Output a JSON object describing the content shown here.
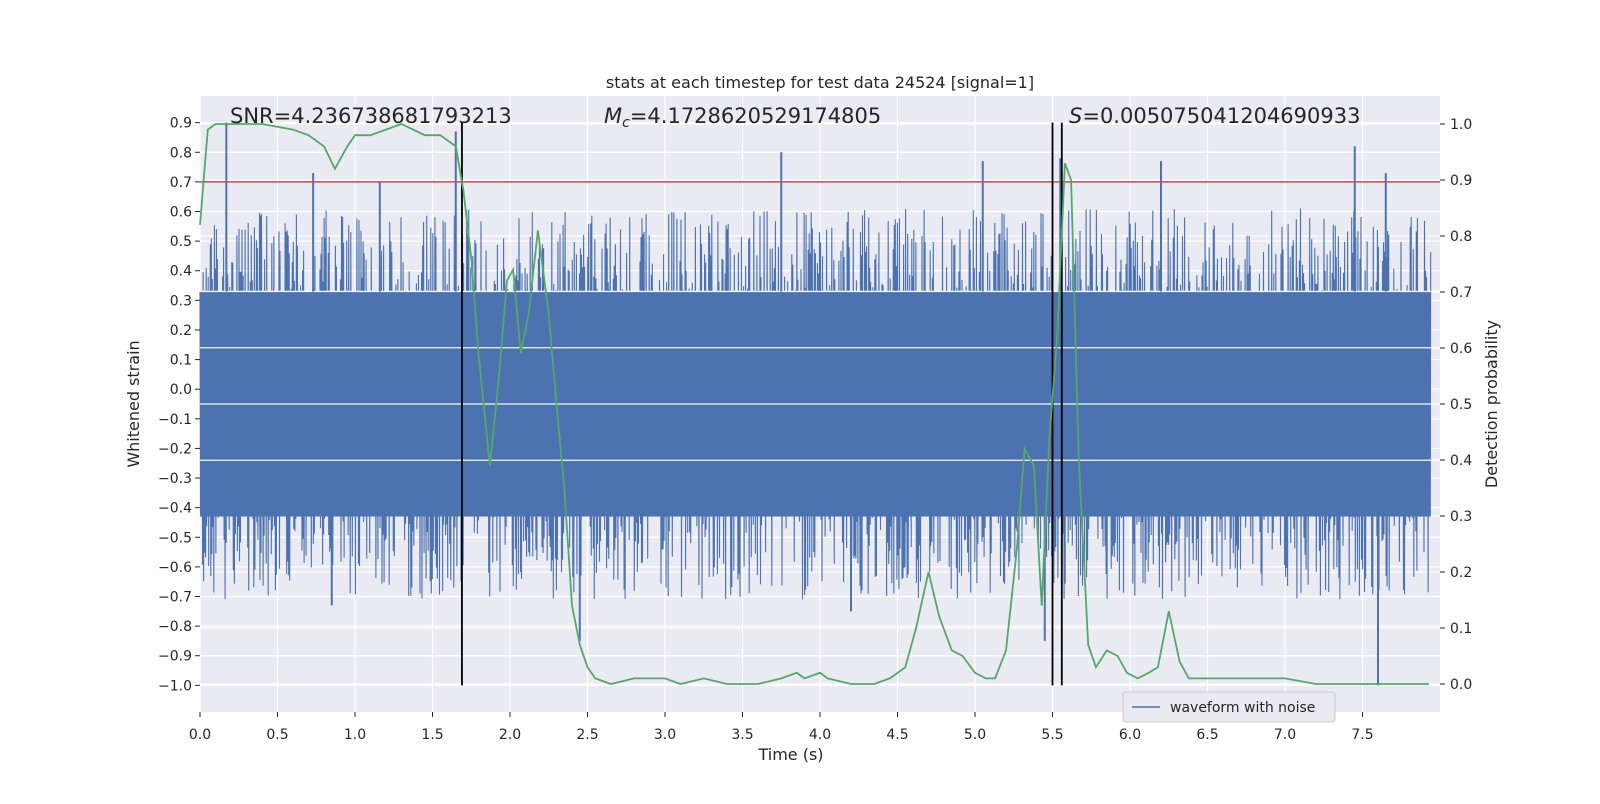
{
  "chart_data": {
    "type": "line",
    "title": "stats at each timestep for test data 24524 [signal=1]",
    "xlabel": "Time (s)",
    "ylabel_left": "Whitened strain",
    "ylabel_right": "Detection probability",
    "xlim": [
      0.0,
      8.0
    ],
    "ylim_left": [
      -1.09,
      0.99
    ],
    "ylim_right": [
      -0.05,
      1.05
    ],
    "x_ticks": [
      "0.0",
      "0.5",
      "1.0",
      "1.5",
      "2.0",
      "2.5",
      "3.0",
      "3.5",
      "4.0",
      "4.5",
      "5.0",
      "5.5",
      "6.0",
      "6.5",
      "7.0",
      "7.5"
    ],
    "y_ticks_left": [
      "0.9",
      "0.8",
      "0.7",
      "0.6",
      "0.5",
      "0.4",
      "0.3",
      "0.2",
      "0.1",
      "0.0",
      "−0.1",
      "−0.2",
      "−0.3",
      "−0.4",
      "−0.5",
      "−0.6",
      "−0.7",
      "−0.8",
      "−0.9",
      "−1.0"
    ],
    "y_ticks_right": [
      "1.0",
      "0.9",
      "0.8",
      "0.7",
      "0.6",
      "0.5",
      "0.4",
      "0.3",
      "0.2",
      "0.1",
      "0.0"
    ],
    "grid": true,
    "annotations": {
      "snr": "SNR=4.236738681793213",
      "mc_symbol": "M",
      "mc_sub": "c",
      "mc_value": "=4.1728620529174805",
      "s_symbol": "S",
      "s_value": "=0.005075041204690933"
    },
    "threshold_line": {
      "value": 0.7,
      "color": "#c44e52"
    },
    "vertical_lines": [
      1.69,
      5.5,
      5.56
    ],
    "legend": {
      "label": "waveform with noise",
      "placement": "lower-right"
    },
    "series": [
      {
        "name": "waveform with noise",
        "axis": "left",
        "color": "#4c72b0",
        "kind": "noisy-waveform",
        "core_band": [
          -0.43,
          0.33
        ],
        "max_value": 0.9,
        "min_value": -1.0,
        "spikes": [
          {
            "x": 0.17,
            "y": 0.9
          },
          {
            "x": 0.73,
            "y": 0.73
          },
          {
            "x": 0.85,
            "y": -0.73
          },
          {
            "x": 1.16,
            "y": 0.7
          },
          {
            "x": 1.65,
            "y": 0.87
          },
          {
            "x": 2.45,
            "y": -0.85
          },
          {
            "x": 3.75,
            "y": 0.8
          },
          {
            "x": 4.2,
            "y": -0.75
          },
          {
            "x": 5.05,
            "y": 0.77
          },
          {
            "x": 5.45,
            "y": -0.85
          },
          {
            "x": 5.55,
            "y": 0.78
          },
          {
            "x": 6.2,
            "y": 0.77
          },
          {
            "x": 7.45,
            "y": 0.82
          },
          {
            "x": 7.6,
            "y": -1.0
          },
          {
            "x": 7.65,
            "y": 0.73
          }
        ]
      },
      {
        "name": "detection probability",
        "axis": "right",
        "color": "#55a868",
        "x": [
          0.0,
          0.05,
          0.1,
          0.2,
          0.4,
          0.6,
          0.7,
          0.8,
          0.87,
          0.95,
          1.0,
          1.1,
          1.2,
          1.3,
          1.45,
          1.55,
          1.65,
          1.7,
          1.75,
          1.8,
          1.87,
          1.93,
          1.98,
          2.02,
          2.07,
          2.12,
          2.18,
          2.25,
          2.3,
          2.35,
          2.4,
          2.45,
          2.5,
          2.55,
          2.65,
          2.8,
          2.95,
          3.0,
          3.1,
          3.25,
          3.4,
          3.6,
          3.75,
          3.85,
          3.9,
          4.0,
          4.05,
          4.2,
          4.35,
          4.45,
          4.55,
          4.62,
          4.7,
          4.77,
          4.85,
          4.92,
          5.0,
          5.07,
          5.13,
          5.2,
          5.27,
          5.32,
          5.38,
          5.43,
          5.48,
          5.53,
          5.58,
          5.62,
          5.67,
          5.73,
          5.78,
          5.85,
          5.92,
          5.98,
          6.05,
          6.12,
          6.18,
          6.25,
          6.32,
          6.38,
          6.45,
          6.55,
          6.7,
          6.85,
          7.0,
          7.2,
          7.4,
          7.6,
          7.8,
          7.93
        ],
        "y": [
          0.82,
          0.99,
          1.0,
          1.0,
          1.0,
          0.99,
          0.98,
          0.96,
          0.92,
          0.96,
          0.98,
          0.98,
          0.99,
          1.0,
          0.98,
          0.98,
          0.96,
          0.88,
          0.76,
          0.58,
          0.39,
          0.55,
          0.72,
          0.74,
          0.59,
          0.66,
          0.81,
          0.66,
          0.5,
          0.35,
          0.14,
          0.07,
          0.03,
          0.01,
          0.0,
          0.01,
          0.01,
          0.01,
          0.0,
          0.01,
          0.0,
          0.0,
          0.01,
          0.02,
          0.01,
          0.02,
          0.01,
          0.0,
          0.0,
          0.01,
          0.03,
          0.1,
          0.2,
          0.12,
          0.06,
          0.05,
          0.02,
          0.01,
          0.01,
          0.06,
          0.24,
          0.42,
          0.39,
          0.14,
          0.44,
          0.62,
          0.93,
          0.9,
          0.4,
          0.07,
          0.03,
          0.06,
          0.05,
          0.02,
          0.01,
          0.02,
          0.03,
          0.13,
          0.04,
          0.01,
          0.01,
          0.01,
          0.01,
          0.01,
          0.01,
          0.0,
          0.0,
          0.0,
          0.0,
          0.0
        ]
      }
    ]
  }
}
